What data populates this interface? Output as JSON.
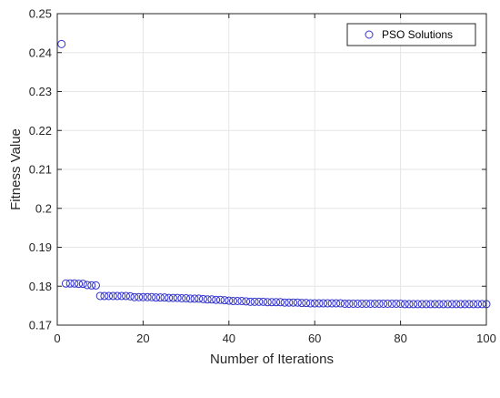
{
  "chart_data": {
    "type": "scatter",
    "xlabel": "Number of Iterations",
    "ylabel": "Fitness Value",
    "xlim": [
      0,
      100
    ],
    "ylim": [
      0.17,
      0.25
    ],
    "xticks": [
      "0",
      "20",
      "40",
      "60",
      "80",
      "100"
    ],
    "yticks": [
      "0.17",
      "0.18",
      "0.19",
      "0.2",
      "0.21",
      "0.22",
      "0.23",
      "0.24",
      "0.25"
    ],
    "grid": true,
    "legend_position": "top-right",
    "colors": {
      "marker": "#3333cc",
      "grid": "#e6e6e6",
      "axis": "#262626"
    },
    "series": [
      {
        "name": "PSO Solutions",
        "marker": "open-circle",
        "x": [
          1,
          2,
          3,
          4,
          5,
          6,
          7,
          8,
          9,
          10,
          11,
          12,
          13,
          14,
          15,
          16,
          17,
          18,
          19,
          20,
          21,
          22,
          23,
          24,
          25,
          26,
          27,
          28,
          29,
          30,
          31,
          32,
          33,
          34,
          35,
          36,
          37,
          38,
          39,
          40,
          41,
          42,
          43,
          44,
          45,
          46,
          47,
          48,
          49,
          50,
          51,
          52,
          53,
          54,
          55,
          56,
          57,
          58,
          59,
          60,
          61,
          62,
          63,
          64,
          65,
          66,
          67,
          68,
          69,
          70,
          71,
          72,
          73,
          74,
          75,
          76,
          77,
          78,
          79,
          80,
          81,
          82,
          83,
          84,
          85,
          86,
          87,
          88,
          89,
          90,
          91,
          92,
          93,
          94,
          95,
          96,
          97,
          98,
          99,
          100
        ],
        "y": [
          0.2422,
          0.1807,
          0.1807,
          0.1807,
          0.1806,
          0.1806,
          0.1803,
          0.1802,
          0.1802,
          0.1775,
          0.1775,
          0.1775,
          0.1775,
          0.1775,
          0.1775,
          0.1775,
          0.1774,
          0.1772,
          0.1772,
          0.1772,
          0.1772,
          0.1772,
          0.1771,
          0.1771,
          0.1771,
          0.177,
          0.177,
          0.177,
          0.1769,
          0.1769,
          0.1768,
          0.1768,
          0.1768,
          0.1767,
          0.1766,
          0.1766,
          0.1765,
          0.1765,
          0.1764,
          0.1763,
          0.1762,
          0.1762,
          0.1762,
          0.1761,
          0.176,
          0.176,
          0.176,
          0.176,
          0.1759,
          0.1759,
          0.1759,
          0.1759,
          0.1758,
          0.1758,
          0.1758,
          0.1758,
          0.1757,
          0.1757,
          0.1756,
          0.1756,
          0.1756,
          0.1756,
          0.1756,
          0.1756,
          0.1756,
          0.1756,
          0.1755,
          0.1755,
          0.1755,
          0.1755,
          0.1755,
          0.1755,
          0.1755,
          0.1755,
          0.1755,
          0.1755,
          0.1755,
          0.1755,
          0.1755,
          0.1755,
          0.1754,
          0.1754,
          0.1754,
          0.1754,
          0.1754,
          0.1754,
          0.1754,
          0.1754,
          0.1754,
          0.1754,
          0.1754,
          0.1754,
          0.1754,
          0.1754,
          0.1754,
          0.1754,
          0.1754,
          0.1754,
          0.1754,
          0.1754
        ]
      }
    ]
  }
}
